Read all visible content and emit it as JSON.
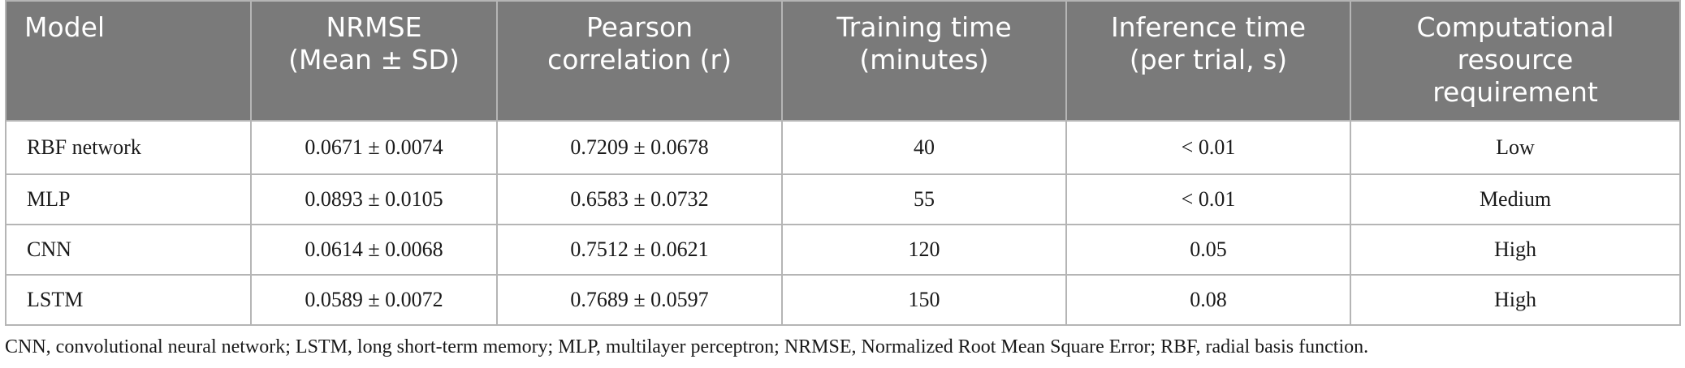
{
  "table": {
    "headers": [
      [
        "Model"
      ],
      [
        "NRMSE",
        "(Mean ± SD)"
      ],
      [
        "Pearson",
        "correlation (r)"
      ],
      [
        "Training time",
        "(minutes)"
      ],
      [
        "Inference time",
        "(per trial, s)"
      ],
      [
        "Computational",
        "resource",
        "requirement"
      ]
    ],
    "rows": [
      [
        "RBF network",
        "0.0671 ± 0.0074",
        "0.7209 ± 0.0678",
        "40",
        "< 0.01",
        "Low"
      ],
      [
        "MLP",
        "0.0893 ± 0.0105",
        "0.6583 ± 0.0732",
        "55",
        "< 0.01",
        "Medium"
      ],
      [
        "CNN",
        "0.0614 ± 0.0068",
        "0.7512 ± 0.0621",
        "120",
        "0.05",
        "High"
      ],
      [
        "LSTM",
        "0.0589 ± 0.0072",
        "0.7689 ± 0.0597",
        "150",
        "0.08",
        "High"
      ]
    ]
  },
  "footnote": "CNN, convolutional neural network; LSTM, long short-term memory; MLP, multilayer perceptron; NRMSE, Normalized Root Mean Square Error; RBF, radial basis function.",
  "colors": {
    "header_bg": "#7a7a7a",
    "header_text": "#ffffff",
    "border": "#b5b5b5",
    "body_text": "#1a1a1a"
  }
}
